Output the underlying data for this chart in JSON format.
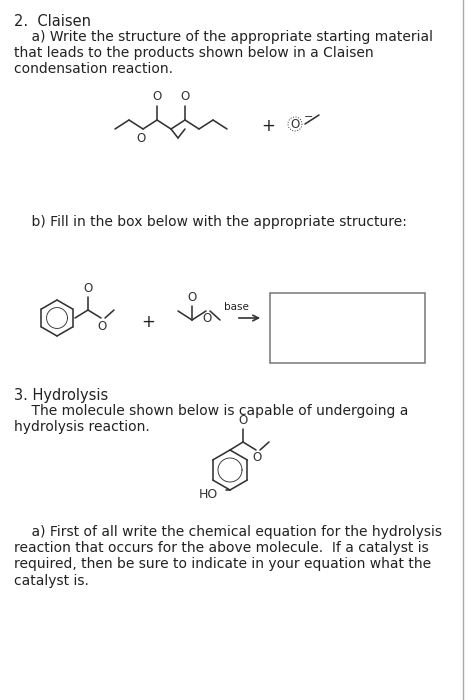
{
  "bg_color": "#ffffff",
  "text_color": "#222222",
  "title2": "2.  Claisen",
  "para2a": "    a) Write the structure of the appropriate starting material\nthat leads to the products shown below in a Claisen\ncondensation reaction.",
  "para2b": "    b) Fill in the box below with the appropriate structure:",
  "title3": "3. Hydrolysis",
  "para3a": "    The molecule shown below is capable of undergoing a\nhydrolysis reaction.",
  "para3b": "    a) First of all write the chemical equation for the hydrolysis\nreaction that occurs for the above molecule.  If a catalyst is\nrequired, then be sure to indicate in your equation what the\ncatalyst is.",
  "font_size_title": 10.5,
  "font_size_body": 10.0,
  "line_color": "#333333",
  "border_color": "#999999"
}
